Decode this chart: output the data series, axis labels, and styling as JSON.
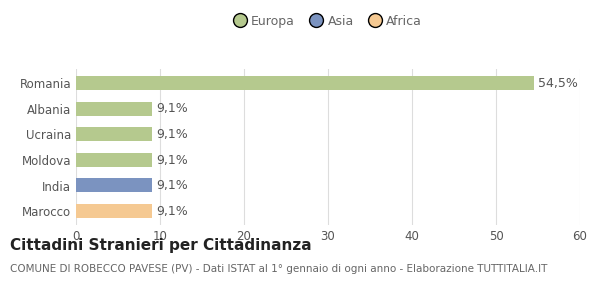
{
  "categories": [
    "Romania",
    "Albania",
    "Ucraina",
    "Moldova",
    "India",
    "Marocco"
  ],
  "values": [
    54.5,
    9.1,
    9.1,
    9.1,
    9.1,
    9.1
  ],
  "labels": [
    "54,5%",
    "9,1%",
    "9,1%",
    "9,1%",
    "9,1%",
    "9,1%"
  ],
  "bar_colors": [
    "#b5c98e",
    "#b5c98e",
    "#b5c98e",
    "#b5c98e",
    "#7b93c0",
    "#f5c992"
  ],
  "legend_items": [
    {
      "label": "Europa",
      "color": "#b5c98e"
    },
    {
      "label": "Asia",
      "color": "#7b93c0"
    },
    {
      "label": "Africa",
      "color": "#f5c992"
    }
  ],
  "xlim": [
    0,
    60
  ],
  "xticks": [
    0,
    10,
    20,
    30,
    40,
    50,
    60
  ],
  "title": "Cittadini Stranieri per Cittadinanza",
  "subtitle": "COMUNE DI ROBECCO PAVESE (PV) - Dati ISTAT al 1° gennaio di ogni anno - Elaborazione TUTTITALIA.IT",
  "background_color": "#ffffff",
  "bar_height": 0.55,
  "grid_color": "#dddddd",
  "label_fontsize": 9,
  "tick_fontsize": 8.5,
  "title_fontsize": 11,
  "subtitle_fontsize": 7.5
}
